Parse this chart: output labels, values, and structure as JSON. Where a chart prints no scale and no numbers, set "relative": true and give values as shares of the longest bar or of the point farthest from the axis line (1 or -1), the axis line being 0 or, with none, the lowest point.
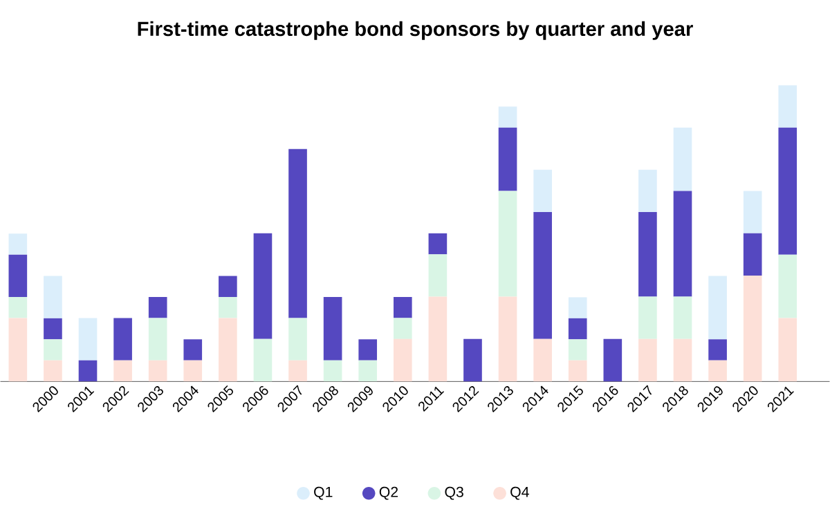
{
  "chart_data": {
    "type": "bar",
    "title": "First-time catastrophe bond sponsors by quarter and year",
    "stacked": true,
    "relative": true,
    "legend": "bottom",
    "categories": [
      null,
      "2000",
      "2001",
      "2002",
      "2003",
      "2004",
      "2005",
      "2006",
      "2007",
      "2008",
      "2009",
      "2010",
      "2011",
      "2012",
      "2013",
      "2014",
      "2015",
      "2016",
      "2017",
      "2018",
      "2019",
      "2020",
      "2021"
    ],
    "series": [
      {
        "name": "Q4",
        "color": "#fde0d8",
        "values": [
          0.214,
          0.071,
          0,
          0.071,
          0.071,
          0.071,
          0.214,
          0,
          0.071,
          0,
          0,
          0.143,
          0.286,
          0,
          0.286,
          0.143,
          0.071,
          0,
          0.143,
          0.143,
          0.071,
          0.357,
          0.214
        ]
      },
      {
        "name": "Q3",
        "color": "#d9f5e5",
        "values": [
          0.071,
          0.071,
          0,
          0,
          0.143,
          0,
          0.071,
          0.143,
          0.143,
          0.071,
          0.071,
          0.071,
          0.143,
          0,
          0.357,
          0,
          0.071,
          0,
          0.143,
          0.143,
          0,
          0,
          0.214
        ]
      },
      {
        "name": "Q2",
        "color": "#5548c0",
        "values": [
          0.143,
          0.071,
          0.071,
          0.143,
          0.071,
          0.071,
          0.071,
          0.357,
          0.571,
          0.214,
          0.071,
          0.071,
          0.071,
          0.143,
          0.214,
          0.429,
          0.071,
          0.143,
          0.286,
          0.357,
          0.071,
          0.143,
          0.429
        ]
      },
      {
        "name": "Q1",
        "color": "#dbeefb",
        "values": [
          0.071,
          0.143,
          0.143,
          0,
          0,
          0,
          0,
          0,
          0,
          0,
          0,
          0,
          0,
          0,
          0.071,
          0.143,
          0.071,
          0,
          0.143,
          0.214,
          0.214,
          0.143,
          0.143
        ]
      }
    ]
  }
}
